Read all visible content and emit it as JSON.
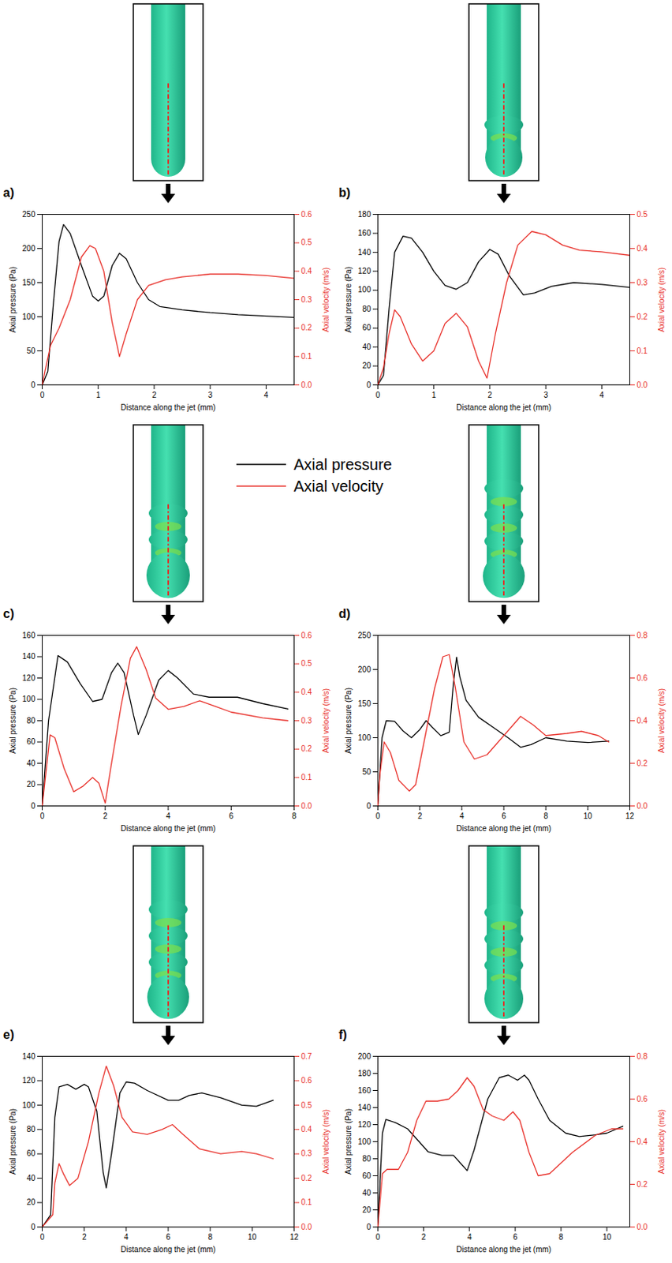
{
  "chart_data": [
    {
      "type": "line",
      "title": "a)",
      "x_label": "Distance along the jet (mm)",
      "y_label": "Axial pressure (Pa)",
      "y2_label": "Axial velocity (m/s)",
      "xlim": [
        0,
        4.5
      ],
      "xticks": [
        0,
        1,
        2,
        3,
        4
      ],
      "ylim": [
        0,
        250
      ],
      "yticks": [
        0,
        50,
        100,
        150,
        200,
        250
      ],
      "y2lim": [
        0,
        0.6
      ],
      "y2ticks": [
        {
          "value": 0,
          "label": "0.0"
        },
        0.1,
        0.2,
        0.3,
        0.4,
        0.5,
        0.6
      ],
      "series": [
        {
          "name": "Axial pressure",
          "color": "#000000",
          "x": [
            0,
            0.1,
            0.2,
            0.3,
            0.38,
            0.5,
            0.7,
            0.9,
            1.0,
            1.1,
            1.25,
            1.38,
            1.5,
            1.7,
            1.9,
            2.1,
            2.5,
            3,
            3.5,
            4,
            4.5
          ],
          "values": [
            0,
            20,
            120,
            210,
            235,
            222,
            175,
            130,
            123,
            130,
            175,
            193,
            185,
            150,
            125,
            115,
            110,
            106,
            103,
            101,
            99
          ]
        },
        {
          "name": "Axial velocity",
          "color": "#e8302a",
          "axis": "y2",
          "x": [
            0,
            0.05,
            0.15,
            0.3,
            0.5,
            0.7,
            0.85,
            0.95,
            1.1,
            1.25,
            1.38,
            1.5,
            1.7,
            1.9,
            2.2,
            2.5,
            3,
            3.5,
            4,
            4.5
          ],
          "values": [
            0,
            0.05,
            0.14,
            0.2,
            0.3,
            0.45,
            0.49,
            0.48,
            0.4,
            0.22,
            0.1,
            0.18,
            0.3,
            0.35,
            0.37,
            0.38,
            0.39,
            0.39,
            0.385,
            0.375
          ]
        }
      ]
    },
    {
      "type": "line",
      "title": "b)",
      "x_label": "Distance along the jet (mm)",
      "y_label": "Axial pressure (Pa)",
      "y2_label": "Axial velocity (m/s)",
      "xlim": [
        0,
        4.5
      ],
      "xticks": [
        0,
        1,
        2,
        3,
        4
      ],
      "ylim": [
        0,
        180
      ],
      "yticks": [
        0,
        20,
        40,
        60,
        80,
        100,
        120,
        140,
        160,
        180
      ],
      "y2lim": [
        0,
        0.5
      ],
      "y2ticks": [
        {
          "value": 0,
          "label": "0.0"
        },
        0.1,
        0.2,
        0.3,
        0.4,
        0.5
      ],
      "series": [
        {
          "name": "Axial pressure",
          "color": "#000000",
          "x": [
            0,
            0.1,
            0.2,
            0.3,
            0.45,
            0.6,
            0.8,
            1.0,
            1.2,
            1.4,
            1.6,
            1.8,
            2.0,
            2.15,
            2.35,
            2.6,
            2.8,
            3.1,
            3.5,
            4,
            4.5
          ],
          "values": [
            0,
            10,
            80,
            140,
            157,
            155,
            140,
            120,
            105,
            101,
            108,
            130,
            143,
            138,
            115,
            95,
            97,
            104,
            108,
            106,
            103
          ]
        },
        {
          "name": "Axial velocity",
          "color": "#e8302a",
          "axis": "y2",
          "x": [
            0,
            0.1,
            0.2,
            0.3,
            0.4,
            0.6,
            0.8,
            1.0,
            1.2,
            1.4,
            1.6,
            1.8,
            1.95,
            2.1,
            2.3,
            2.5,
            2.75,
            3.0,
            3.3,
            3.6,
            4,
            4.5
          ],
          "values": [
            0,
            0.05,
            0.15,
            0.22,
            0.2,
            0.12,
            0.07,
            0.1,
            0.18,
            0.21,
            0.17,
            0.07,
            0.02,
            0.15,
            0.3,
            0.41,
            0.45,
            0.44,
            0.41,
            0.395,
            0.39,
            0.38
          ]
        }
      ]
    },
    {
      "type": "line",
      "title": "c)",
      "x_label": "Distance along the jet (mm)",
      "y_label": "Axial pressure (Pa)",
      "y2_label": "Axial velocity (m/s)",
      "legend": "top",
      "xlim": [
        0,
        8
      ],
      "xticks": [
        0,
        2,
        4,
        6,
        8
      ],
      "ylim": [
        0,
        160
      ],
      "yticks": [
        0,
        20,
        40,
        60,
        80,
        100,
        120,
        140,
        160
      ],
      "y2lim": [
        0,
        0.6
      ],
      "y2ticks": [
        {
          "value": 0,
          "label": "0.0"
        },
        0.1,
        0.2,
        0.3,
        0.4,
        0.5,
        0.6
      ],
      "series": [
        {
          "name": "Axial pressure",
          "color": "#000000",
          "x": [
            0,
            0.2,
            0.5,
            0.8,
            1.2,
            1.6,
            1.9,
            2.2,
            2.4,
            2.6,
            2.9,
            3.05,
            3.3,
            3.7,
            4,
            4.3,
            4.8,
            5.3,
            6.2,
            7,
            7.8
          ],
          "values": [
            0,
            80,
            141,
            135,
            115,
            98,
            100,
            125,
            134,
            125,
            85,
            67,
            85,
            118,
            127,
            120,
            105,
            102,
            102,
            96,
            91
          ]
        },
        {
          "name": "Axial velocity",
          "color": "#e8302a",
          "axis": "y2",
          "x": [
            0,
            0.1,
            0.25,
            0.4,
            0.7,
            1,
            1.3,
            1.6,
            1.8,
            2.0,
            2.2,
            2.5,
            2.8,
            3.0,
            3.3,
            3.6,
            4,
            4.5,
            5,
            5.5,
            6,
            7,
            7.8
          ],
          "values": [
            0,
            0.1,
            0.25,
            0.24,
            0.13,
            0.05,
            0.07,
            0.1,
            0.08,
            0.01,
            0.15,
            0.35,
            0.52,
            0.56,
            0.48,
            0.38,
            0.34,
            0.35,
            0.37,
            0.35,
            0.33,
            0.31,
            0.3
          ]
        }
      ]
    },
    {
      "type": "line",
      "title": "d)",
      "x_label": "Distance along the jet (mm)",
      "y_label": "Axial pressure (Pa)",
      "y2_label": "Axial velocity (m/s)",
      "xlim": [
        0,
        12
      ],
      "xticks": [
        0,
        2,
        4,
        6,
        8,
        10,
        12
      ],
      "ylim": [
        0,
        250
      ],
      "yticks": [
        0,
        50,
        100,
        150,
        200,
        250
      ],
      "y2lim": [
        0,
        0.8
      ],
      "y2ticks": [
        {
          "value": 0,
          "label": "0.0"
        },
        0.2,
        0.4,
        0.6,
        0.8
      ],
      "series": [
        {
          "name": "Axial pressure",
          "color": "#000000",
          "x": [
            0,
            0.2,
            0.4,
            0.8,
            1.2,
            1.6,
            2.0,
            2.3,
            2.6,
            3.0,
            3.4,
            3.6,
            3.75,
            3.9,
            4.2,
            4.8,
            5.5,
            6.2,
            6.8,
            7.3,
            8,
            9,
            10,
            11
          ],
          "values": [
            0,
            100,
            125,
            124,
            110,
            100,
            112,
            125,
            115,
            103,
            108,
            180,
            218,
            190,
            155,
            130,
            115,
            100,
            86,
            90,
            100,
            95,
            93,
            95
          ]
        },
        {
          "name": "Axial velocity",
          "color": "#e8302a",
          "axis": "y2",
          "x": [
            0,
            0.1,
            0.3,
            0.6,
            1,
            1.5,
            1.8,
            2.2,
            2.7,
            3.1,
            3.4,
            3.7,
            4.1,
            4.6,
            5.2,
            6,
            6.8,
            7.4,
            8,
            9,
            9.7,
            10.5,
            11
          ],
          "values": [
            0,
            0.15,
            0.3,
            0.25,
            0.12,
            0.07,
            0.1,
            0.3,
            0.55,
            0.7,
            0.71,
            0.55,
            0.3,
            0.22,
            0.24,
            0.33,
            0.42,
            0.38,
            0.33,
            0.34,
            0.35,
            0.33,
            0.3
          ]
        }
      ]
    },
    {
      "type": "line",
      "title": "e)",
      "x_label": "Distance along the jet (mm)",
      "y_label": "Axial pressure (Pa)",
      "y2_label": "Axial velocity (m/s)",
      "xlim": [
        0,
        12
      ],
      "xticks": [
        0,
        2,
        4,
        6,
        8,
        10,
        12
      ],
      "ylim": [
        0,
        140
      ],
      "yticks": [
        0,
        20,
        40,
        60,
        80,
        100,
        120,
        140
      ],
      "y2lim": [
        0,
        0.7
      ],
      "y2ticks": [
        {
          "value": 0,
          "label": "0.0"
        },
        0.1,
        0.2,
        0.3,
        0.4,
        0.5,
        0.6,
        0.7
      ],
      "series": [
        {
          "name": "Axial pressure",
          "color": "#000000",
          "x": [
            0,
            0.4,
            0.6,
            0.8,
            1.2,
            1.6,
            2.0,
            2.2,
            2.6,
            2.9,
            3.05,
            3.3,
            3.7,
            4.0,
            4.4,
            5,
            6,
            6.5,
            7,
            7.6,
            8.5,
            9.5,
            10.2,
            11
          ],
          "values": [
            0,
            10,
            90,
            115,
            117,
            113,
            117,
            115,
            95,
            45,
            32,
            60,
            110,
            119,
            118,
            112,
            104,
            104,
            108,
            110,
            106,
            100,
            99,
            104
          ]
        },
        {
          "name": "Axial velocity",
          "color": "#e8302a",
          "axis": "y2",
          "x": [
            0,
            0.5,
            0.6,
            0.8,
            1.0,
            1.3,
            1.7,
            2.2,
            2.7,
            3.05,
            3.4,
            3.8,
            4.3,
            5,
            5.7,
            6.2,
            6.7,
            7.5,
            8.5,
            9.5,
            10.2,
            11
          ],
          "values": [
            0,
            0.05,
            0.18,
            0.26,
            0.22,
            0.17,
            0.2,
            0.35,
            0.55,
            0.66,
            0.58,
            0.45,
            0.39,
            0.38,
            0.4,
            0.42,
            0.38,
            0.32,
            0.3,
            0.31,
            0.3,
            0.28
          ]
        }
      ]
    },
    {
      "type": "line",
      "title": "f)",
      "x_label": "Distance along the jet (mm)",
      "y_label": "Axial pressure (Pa)",
      "y2_label": "Axial velocity (m/s)",
      "xlim": [
        0,
        11
      ],
      "xticks": [
        0,
        2,
        4,
        6,
        8,
        10
      ],
      "ylim": [
        0,
        200
      ],
      "yticks": [
        0,
        20,
        40,
        60,
        80,
        100,
        120,
        140,
        160,
        180,
        200
      ],
      "y2lim": [
        0,
        0.8
      ],
      "y2ticks": [
        {
          "value": 0,
          "label": "0.0"
        },
        0.2,
        0.4,
        0.6,
        0.8
      ],
      "series": [
        {
          "name": "Axial pressure",
          "color": "#000000",
          "x": [
            0,
            0.2,
            0.35,
            0.8,
            1.3,
            1.8,
            2.2,
            2.8,
            3.3,
            3.6,
            3.9,
            4.2,
            4.8,
            5.3,
            5.7,
            6.1,
            6.4,
            6.6,
            7,
            7.5,
            8.2,
            8.8,
            9.5,
            10,
            10.7
          ],
          "values": [
            0,
            110,
            126,
            122,
            115,
            100,
            88,
            84,
            84,
            75,
            66,
            90,
            150,
            175,
            178,
            172,
            178,
            172,
            150,
            125,
            110,
            106,
            108,
            110,
            118
          ]
        },
        {
          "name": "Axial velocity",
          "color": "#e8302a",
          "axis": "y2",
          "x": [
            0,
            0.2,
            0.4,
            0.9,
            1.3,
            1.7,
            2.1,
            2.6,
            3.1,
            3.5,
            3.9,
            4.2,
            4.6,
            5,
            5.5,
            5.9,
            6.2,
            6.6,
            7,
            7.5,
            8.5,
            9.5,
            10.2,
            10.7
          ],
          "values": [
            0,
            0.25,
            0.27,
            0.27,
            0.35,
            0.5,
            0.59,
            0.59,
            0.6,
            0.64,
            0.7,
            0.66,
            0.55,
            0.52,
            0.5,
            0.54,
            0.5,
            0.35,
            0.24,
            0.25,
            0.35,
            0.43,
            0.46,
            0.46
          ]
        }
      ]
    }
  ]
}
